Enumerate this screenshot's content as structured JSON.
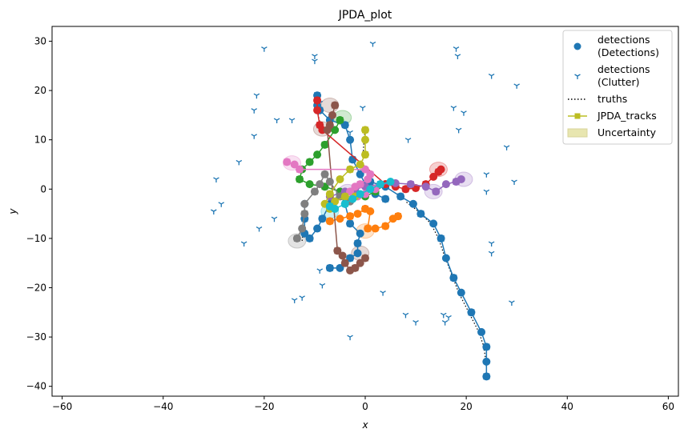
{
  "chart_data": {
    "type": "scatter",
    "title": "JPDA_plot",
    "xlabel": "x",
    "ylabel": "y",
    "xlim": [
      -62,
      62
    ],
    "ylim": [
      -42,
      33
    ],
    "xticks": [
      -60,
      -40,
      -20,
      0,
      20,
      40,
      60
    ],
    "yticks": [
      -40,
      -30,
      -20,
      -10,
      0,
      10,
      20,
      30
    ],
    "grid": false,
    "legend_position": "top-right",
    "legend": [
      {
        "label": "detections\n(Detections)",
        "marker": "circle",
        "color": "#1f77b4"
      },
      {
        "label": "detections\n(Clutter)",
        "marker": "tri",
        "color": "#1f77b4"
      },
      {
        "label": "truths",
        "marker": "dotted-line",
        "color": "#000000"
      },
      {
        "label": "JPDA_tracks",
        "marker": "square-line",
        "color": "#bcbd22"
      },
      {
        "label": "Uncertainty",
        "marker": "patch",
        "color": "#e8e6b0"
      }
    ],
    "clutter": [
      [
        -20,
        28.5
      ],
      [
        -10,
        27
      ],
      [
        -10,
        26
      ],
      [
        1.5,
        29.5
      ],
      [
        18,
        28.5
      ],
      [
        18.3,
        27
      ],
      [
        25,
        23
      ],
      [
        30,
        21
      ],
      [
        -21.5,
        19
      ],
      [
        -22,
        16
      ],
      [
        -17.5,
        14
      ],
      [
        -14.5,
        14
      ],
      [
        -9,
        17.5
      ],
      [
        -0.5,
        16.5
      ],
      [
        -3,
        11.5
      ],
      [
        17.5,
        16.5
      ],
      [
        19.5,
        15.5
      ],
      [
        18.5,
        12
      ],
      [
        8.5,
        10
      ],
      [
        28,
        8.5
      ],
      [
        -25,
        5.5
      ],
      [
        -22,
        10.8
      ],
      [
        -29.5,
        2
      ],
      [
        -28.5,
        -3
      ],
      [
        -30,
        -4.5
      ],
      [
        24,
        3
      ],
      [
        29.5,
        1.5
      ],
      [
        24,
        -0.5
      ],
      [
        -18,
        -6
      ],
      [
        -21,
        -8
      ],
      [
        -24,
        -11
      ],
      [
        25,
        -11
      ],
      [
        25,
        -13
      ],
      [
        -9,
        -16.5
      ],
      [
        -8.5,
        -19.5
      ],
      [
        -14,
        -22.5
      ],
      [
        -12.5,
        -22
      ],
      [
        3.5,
        -21
      ],
      [
        29,
        -23
      ],
      [
        -3,
        -30
      ],
      [
        8,
        -25.5
      ],
      [
        10,
        -27
      ],
      [
        15.5,
        -25.5
      ],
      [
        16.5,
        -26
      ],
      [
        15.8,
        -27
      ]
    ],
    "tracks": [
      {
        "color": "#1f77b4",
        "points": [
          [
            24,
            -38
          ],
          [
            24,
            -35
          ],
          [
            24,
            -32
          ],
          [
            23,
            -29
          ],
          [
            21,
            -25
          ],
          [
            19,
            -21
          ],
          [
            17.5,
            -18
          ],
          [
            16,
            -14
          ],
          [
            15,
            -10
          ],
          [
            13.5,
            -7
          ],
          [
            11,
            -5
          ],
          [
            9.5,
            -3
          ],
          [
            7,
            -1.5
          ],
          [
            4,
            0.5
          ],
          [
            1,
            1.5
          ]
        ]
      },
      {
        "color": "#1f77b4",
        "points": [
          [
            -7,
            -16
          ],
          [
            -5,
            -16
          ],
          [
            -3,
            -14
          ],
          [
            -1.5,
            -13
          ],
          [
            -1.5,
            -11
          ],
          [
            -1,
            -9
          ],
          [
            -3,
            -7
          ],
          [
            -4,
            -3
          ],
          [
            -5,
            -1
          ],
          [
            -7,
            -3
          ],
          [
            -8.5,
            -6
          ],
          [
            -9.5,
            -8
          ],
          [
            -11,
            -10
          ],
          [
            -12,
            -9
          ],
          [
            -12,
            -6
          ],
          [
            -12,
            -3
          ]
        ]
      },
      {
        "color": "#1f77b4",
        "points": [
          [
            -9.5,
            19
          ],
          [
            -9.5,
            17
          ],
          [
            -9,
            16
          ],
          [
            -7,
            14
          ],
          [
            -4,
            13
          ],
          [
            -3,
            10
          ],
          [
            -2.5,
            6
          ],
          [
            -1,
            3
          ],
          [
            0,
            1
          ],
          [
            2,
            -1
          ],
          [
            4,
            -2
          ]
        ]
      },
      {
        "color": "#ff7f0e",
        "points": [
          [
            -7,
            -6.5
          ],
          [
            -5,
            -6
          ],
          [
            -3,
            -5.5
          ],
          [
            -1.5,
            -5
          ],
          [
            0,
            -4
          ],
          [
            1,
            -4.5
          ],
          [
            0.5,
            -8
          ],
          [
            2,
            -8
          ],
          [
            4,
            -7.5
          ],
          [
            5.5,
            -6
          ],
          [
            6.5,
            -5.5
          ]
        ]
      },
      {
        "color": "#2ca02c",
        "points": [
          [
            -5,
            14
          ],
          [
            -6,
            12
          ],
          [
            -8,
            9
          ],
          [
            -9.5,
            7
          ],
          [
            -11,
            5.5
          ],
          [
            -12.5,
            4
          ],
          [
            -13,
            2
          ],
          [
            -11,
            1
          ],
          [
            -8,
            0.5
          ],
          [
            -5,
            -0.5
          ],
          [
            -2,
            -1.5
          ],
          [
            0,
            -1.5
          ],
          [
            2,
            -0.5
          ],
          [
            4,
            1
          ]
        ]
      },
      {
        "color": "#d62728",
        "points": [
          [
            -9.5,
            18
          ],
          [
            -9.5,
            16
          ],
          [
            -9,
            13
          ],
          [
            -8.5,
            12
          ],
          [
            4,
            1
          ],
          [
            6,
            0.5
          ],
          [
            8,
            0
          ],
          [
            10,
            0.2
          ],
          [
            12,
            1
          ],
          [
            13.5,
            2.5
          ],
          [
            14.5,
            3.5
          ],
          [
            15,
            4
          ]
        ]
      },
      {
        "color": "#9467bd",
        "points": [
          [
            -7,
            -1.5
          ],
          [
            -4,
            -0.5
          ],
          [
            -2,
            0
          ],
          [
            0,
            0.5
          ],
          [
            3,
            1
          ],
          [
            6,
            1.2
          ],
          [
            9,
            1.0
          ],
          [
            12,
            0.5
          ],
          [
            14,
            -0.5
          ],
          [
            16,
            1
          ],
          [
            18,
            1.5
          ],
          [
            19,
            2
          ]
        ]
      },
      {
        "color": "#8c564b",
        "points": [
          [
            -6,
            17
          ],
          [
            -6.5,
            15
          ],
          [
            -7,
            13
          ],
          [
            -7.5,
            12
          ],
          [
            -5.5,
            -12.5
          ],
          [
            -4.5,
            -13.5
          ],
          [
            -4,
            -15
          ],
          [
            -3,
            -16.5
          ],
          [
            -2,
            -16
          ],
          [
            -1,
            -15
          ],
          [
            0,
            -14
          ]
        ]
      },
      {
        "color": "#e377c2",
        "points": [
          [
            -15.5,
            5.5
          ],
          [
            -14,
            5
          ],
          [
            -13,
            4
          ],
          [
            0,
            4
          ],
          [
            1,
            3
          ],
          [
            0.5,
            2
          ],
          [
            -1,
            1
          ],
          [
            -2,
            0.5
          ],
          [
            -3,
            -0.5
          ],
          [
            -1.5,
            -1.5
          ],
          [
            0,
            -1
          ],
          [
            2,
            0
          ]
        ]
      },
      {
        "color": "#7f7f7f",
        "points": [
          [
            -13.5,
            -10
          ],
          [
            -12.5,
            -8
          ],
          [
            -12,
            -5
          ],
          [
            -12,
            -3
          ],
          [
            -10,
            -0.5
          ],
          [
            -9,
            1
          ],
          [
            -8,
            3
          ],
          [
            -7,
            1.5
          ],
          [
            -5,
            -1.5
          ],
          [
            -3,
            -2.5
          ]
        ]
      },
      {
        "color": "#bcbd22",
        "points": [
          [
            0,
            12
          ],
          [
            0,
            10
          ],
          [
            0,
            7
          ],
          [
            -1,
            5
          ],
          [
            -3,
            4
          ],
          [
            -5,
            2
          ],
          [
            -7,
            -1
          ],
          [
            -8,
            -3
          ],
          [
            -7,
            -4
          ],
          [
            -6,
            -2.5
          ],
          [
            -4,
            -1.5
          ],
          [
            -2,
            -1.5
          ]
        ]
      },
      {
        "color": "#17becf",
        "points": [
          [
            -7,
            -3.5
          ],
          [
            -6,
            -4
          ],
          [
            -4,
            -3
          ],
          [
            -2.5,
            -2
          ],
          [
            -1,
            -1
          ],
          [
            1,
            0
          ],
          [
            3,
            1
          ],
          [
            5,
            1.5
          ]
        ]
      }
    ],
    "truths": [
      [
        [
          24,
          -36
        ],
        [
          23.5,
          -32
        ],
        [
          22.5,
          -29
        ],
        [
          20.5,
          -25
        ],
        [
          18.5,
          -21
        ],
        [
          17,
          -17
        ],
        [
          15.5,
          -13
        ],
        [
          14.5,
          -10
        ],
        [
          13,
          -7
        ],
        [
          10.5,
          -4.5
        ],
        [
          8,
          -2.5
        ]
      ],
      [
        [
          0,
          12.5
        ],
        [
          -0.3,
          9
        ],
        [
          -0.5,
          6
        ],
        [
          -1,
          3.5
        ]
      ],
      [
        [
          -9.5,
          18.5
        ],
        [
          -9.3,
          15
        ],
        [
          -8.8,
          12.5
        ]
      ],
      [
        [
          -12.5,
          -10.5
        ],
        [
          -12,
          -7
        ],
        [
          -12,
          -4
        ]
      ]
    ],
    "uncertainty": [
      {
        "x": -14.5,
        "y": 5.3,
        "color": "#e377c2"
      },
      {
        "x": -7,
        "y": 17,
        "color": "#8c564b"
      },
      {
        "x": -4.5,
        "y": 14.5,
        "color": "#2ca02c"
      },
      {
        "x": -8.5,
        "y": 12.2,
        "color": "#8c564b"
      },
      {
        "x": -13.5,
        "y": -10.5,
        "color": "#7f7f7f"
      },
      {
        "x": -7,
        "y": -4.5,
        "color": "#17becf"
      },
      {
        "x": -1,
        "y": -13,
        "color": "#8c564b"
      },
      {
        "x": 0,
        "y": -8.5,
        "color": "#ff7f0e"
      },
      {
        "x": 14.5,
        "y": 4,
        "color": "#d62728"
      },
      {
        "x": 19.5,
        "y": 2,
        "color": "#9467bd"
      },
      {
        "x": 13.5,
        "y": -0.5,
        "color": "#9467bd"
      },
      {
        "x": -3.5,
        "y": -0.5,
        "color": "#9467bd"
      }
    ]
  }
}
